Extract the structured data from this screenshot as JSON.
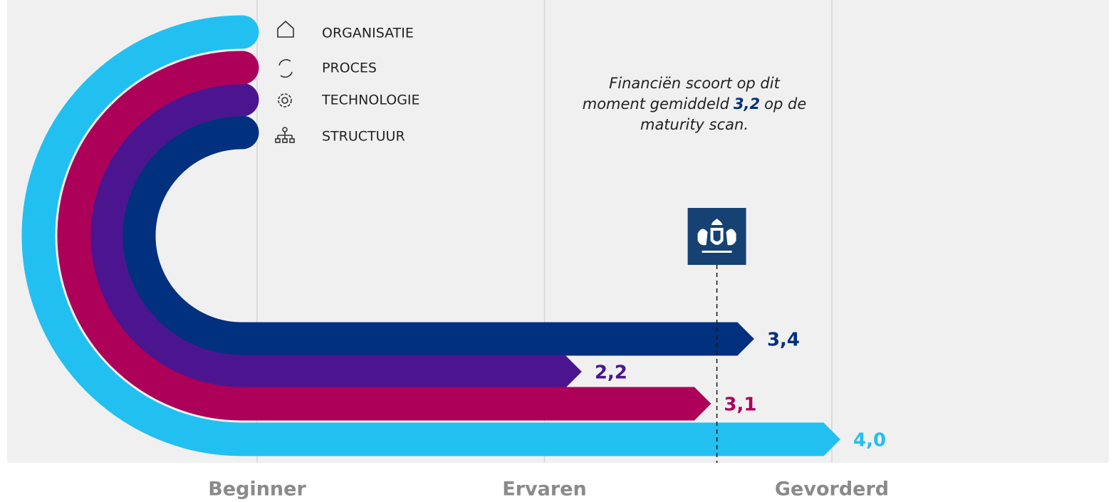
{
  "chart_data": {
    "type": "arc-bar",
    "categories": [
      "ORGANISATIE",
      "PROCES",
      "TECHNOLOGIE",
      "STRUCTUUR"
    ],
    "values": [
      4.0,
      3.1,
      2.2,
      3.4
    ],
    "value_labels": [
      "4,0",
      "3,1",
      "2,2",
      "3,4"
    ],
    "colors": [
      "#22c0f1",
      "#ad0059",
      "#4c1590",
      "#01307f"
    ],
    "xlim": [
      0,
      4
    ],
    "xticks": [
      {
        "value": 0,
        "label": "Beginner"
      },
      {
        "value": 2,
        "label": "Ervaren"
      },
      {
        "value": 4,
        "label": "Gevorderd"
      }
    ],
    "grid": true,
    "average": 3.2,
    "average_label": "3,2",
    "annotation": [
      "Financiën scoort op dit",
      "moment gemiddeld",
      "op de",
      "maturity scan."
    ]
  }
}
